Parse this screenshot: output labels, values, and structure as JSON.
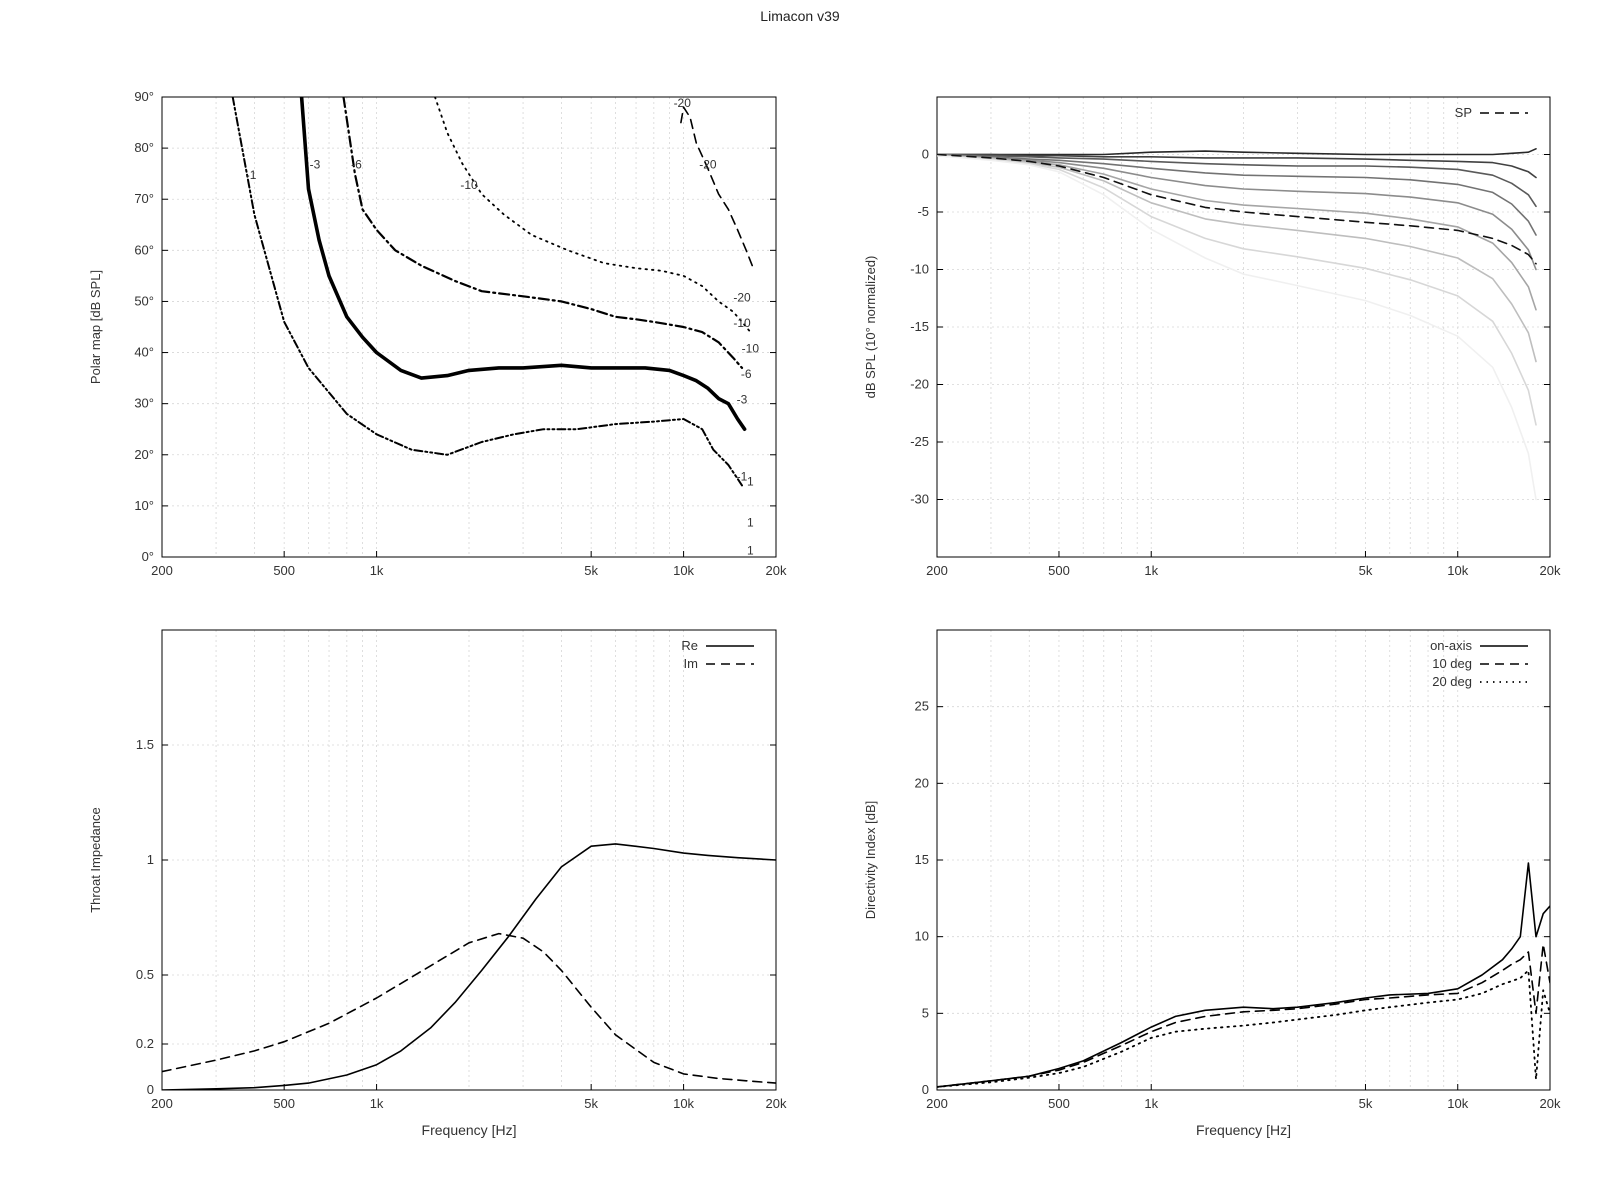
{
  "title": "Limacon v39",
  "chart_data": [
    {
      "id": "polar_map",
      "type": "line",
      "subtype": "contour",
      "title": "",
      "xlabel": "",
      "ylabel": "Polar map [dB SPL]",
      "x_scale": "log",
      "xlim": [
        200,
        20000
      ],
      "ylim": [
        0,
        90
      ],
      "x_ticks": [
        200,
        500,
        1000,
        5000,
        10000,
        20000
      ],
      "x_tick_labels": [
        "200",
        "500",
        "1k",
        "5k",
        "10k",
        "20k"
      ],
      "y_ticks": [
        0,
        10,
        20,
        30,
        40,
        50,
        60,
        70,
        80,
        90
      ],
      "y_tick_labels": [
        "0°",
        "10°",
        "20°",
        "30°",
        "40°",
        "50°",
        "60°",
        "70°",
        "80°",
        "90°"
      ],
      "grid": true,
      "series": [
        {
          "name": "-1",
          "style": "dash-dot-dot",
          "x": [
            340,
            400,
            500,
            600,
            800,
            1000,
            1300,
            1700,
            2200,
            2800,
            3500,
            4500,
            6000,
            8000,
            10000,
            11500,
            12500,
            14000,
            15500
          ],
          "y": [
            90,
            67,
            46,
            37,
            28,
            24,
            21,
            20,
            22.5,
            24,
            25,
            25,
            26,
            26.5,
            27,
            25,
            21,
            18,
            14
          ]
        },
        {
          "name": "-3",
          "style": "thick-solid",
          "x": [
            570,
            600,
            650,
            700,
            800,
            900,
            1000,
            1200,
            1400,
            1700,
            2000,
            2500,
            3000,
            4000,
            5000,
            6000,
            7500,
            9000,
            10000,
            11000,
            12000,
            13000,
            14000,
            15000,
            15800
          ],
          "y": [
            90,
            72,
            62,
            55,
            47,
            43,
            40,
            36.5,
            35,
            35.5,
            36.5,
            37,
            37,
            37.5,
            37,
            37,
            37,
            36.5,
            35.5,
            34.5,
            33,
            31,
            30,
            27,
            25
          ]
        },
        {
          "name": "-6",
          "style": "dash-dot",
          "x": [
            780,
            850,
            900,
            1000,
            1150,
            1400,
            1800,
            2200,
            3000,
            4000,
            5000,
            6000,
            7000,
            8000,
            10000,
            11500,
            13000,
            14500,
            15500
          ],
          "y": [
            90,
            75,
            68,
            64,
            60,
            57,
            54,
            52,
            51,
            50,
            48.5,
            47,
            46.5,
            46,
            45,
            44,
            42,
            39,
            37
          ]
        },
        {
          "name": "-10",
          "style": "dotted",
          "x": [
            1550,
            1700,
            1900,
            2200,
            2600,
            3200,
            4200,
            5500,
            7000,
            8500,
            10000,
            11500,
            13000,
            14500,
            15500,
            16500
          ],
          "y": [
            90,
            83,
            77,
            71,
            67,
            63,
            60,
            57.5,
            56.5,
            56,
            55,
            53,
            50,
            48,
            46,
            44
          ]
        },
        {
          "name": "-20",
          "style": "dashed",
          "x": [
            9800,
            10000,
            10500,
            11000,
            12000,
            13000,
            14000,
            15000,
            16000,
            17000
          ],
          "y": [
            85,
            88,
            86,
            81,
            76,
            71,
            68,
            64,
            60,
            56
          ]
        }
      ],
      "annotations": [
        "-1",
        "-3",
        "-6",
        "-10",
        "-20",
        "-20",
        "-20",
        "-10",
        "-10",
        "-6",
        "-3",
        "-1",
        "1",
        "1",
        "1"
      ]
    },
    {
      "id": "normalized_spl",
      "type": "line",
      "title": "",
      "xlabel": "",
      "ylabel": "dB SPL (10° normalized)",
      "x_scale": "log",
      "xlim": [
        200,
        20000
      ],
      "ylim": [
        -35,
        5
      ],
      "x_ticks": [
        200,
        500,
        1000,
        5000,
        10000,
        20000
      ],
      "x_tick_labels": [
        "200",
        "500",
        "1k",
        "5k",
        "10k",
        "20k"
      ],
      "y_ticks": [
        0,
        -5,
        -10,
        -15,
        -20,
        -25,
        -30
      ],
      "y_tick_labels": [
        "0",
        "-5",
        "-10",
        "-15",
        "-20",
        "-25",
        "-30"
      ],
      "grid": true,
      "legend": {
        "position": "top-right",
        "entries": [
          "SP"
        ]
      },
      "x": [
        200,
        300,
        400,
        500,
        700,
        1000,
        1500,
        2000,
        3000,
        5000,
        7000,
        10000,
        13000,
        15000,
        17000,
        18000
      ],
      "angle_curves_note": "family of off-axis curves, 10° steps from 10° (top) to 90° (bottom), dark to light",
      "angle_curves": [
        {
          "angle": 10,
          "values": [
            0,
            0,
            0,
            0,
            0,
            0.2,
            0.3,
            0.2,
            0.1,
            0,
            0,
            0,
            0,
            0.1,
            0.2,
            0.5
          ]
        },
        {
          "angle": 20,
          "values": [
            0,
            0,
            -0.1,
            -0.1,
            -0.2,
            -0.2,
            -0.3,
            -0.3,
            -0.3,
            -0.4,
            -0.5,
            -0.6,
            -0.7,
            -1.0,
            -1.5,
            -2.0
          ]
        },
        {
          "angle": 30,
          "values": [
            0,
            -0.1,
            -0.2,
            -0.3,
            -0.4,
            -0.6,
            -0.8,
            -0.9,
            -1.0,
            -1.0,
            -1.1,
            -1.3,
            -1.8,
            -2.5,
            -3.5,
            -4.5
          ]
        },
        {
          "angle": 40,
          "values": [
            0,
            -0.2,
            -0.4,
            -0.5,
            -0.8,
            -1.2,
            -1.6,
            -1.8,
            -1.9,
            -2.0,
            -2.2,
            -2.6,
            -3.3,
            -4.3,
            -5.8,
            -7.0
          ]
        },
        {
          "angle": 50,
          "values": [
            0,
            -0.3,
            -0.5,
            -0.7,
            -1.2,
            -2.0,
            -2.7,
            -3.0,
            -3.2,
            -3.4,
            -3.7,
            -4.2,
            -5.2,
            -6.5,
            -8.3,
            -10.0
          ]
        },
        {
          "angle": 60,
          "values": [
            -0.1,
            -0.3,
            -0.6,
            -0.9,
            -1.7,
            -3.0,
            -4.0,
            -4.4,
            -4.7,
            -5.1,
            -5.6,
            -6.3,
            -7.7,
            -9.4,
            -11.5,
            -13.5
          ]
        },
        {
          "angle": 70,
          "values": [
            -0.1,
            -0.4,
            -0.7,
            -1.1,
            -2.3,
            -4.2,
            -5.6,
            -6.1,
            -6.6,
            -7.3,
            -8.0,
            -9.0,
            -10.8,
            -13.0,
            -15.5,
            -18.0
          ]
        },
        {
          "angle": 80,
          "values": [
            -0.1,
            -0.4,
            -0.8,
            -1.3,
            -2.9,
            -5.4,
            -7.3,
            -8.2,
            -8.9,
            -9.9,
            -10.9,
            -12.3,
            -14.5,
            -17.3,
            -20.5,
            -23.5
          ]
        },
        {
          "angle": 90,
          "values": [
            -0.1,
            -0.5,
            -0.9,
            -1.5,
            -3.5,
            -6.5,
            -9.0,
            -10.4,
            -11.4,
            -12.7,
            -14.0,
            -15.8,
            -18.5,
            -22.0,
            -26.0,
            -30.0
          ]
        }
      ],
      "sp_values": [
        0,
        -0.3,
        -0.6,
        -1.0,
        -2.0,
        -3.5,
        -4.6,
        -5.0,
        -5.4,
        -5.9,
        -6.2,
        -6.6,
        -7.3,
        -7.9,
        -8.7,
        -9.5
      ]
    },
    {
      "id": "throat_impedance",
      "type": "line",
      "title": "",
      "xlabel": "Frequency [Hz]",
      "ylabel": "Throat Impedance",
      "x_scale": "log",
      "xlim": [
        200,
        20000
      ],
      "ylim": [
        0,
        2
      ],
      "x_ticks": [
        200,
        500,
        1000,
        5000,
        10000,
        20000
      ],
      "x_tick_labels": [
        "200",
        "500",
        "1k",
        "5k",
        "10k",
        "20k"
      ],
      "y_ticks": [
        0,
        0.2,
        0.5,
        1,
        1.5
      ],
      "y_tick_labels": [
        "0",
        "0.2",
        "0.5",
        "1",
        "1.5"
      ],
      "grid": true,
      "legend": {
        "position": "top-right",
        "entries": [
          "Re",
          "Im"
        ]
      },
      "series": [
        {
          "name": "Re",
          "style": "solid",
          "x": [
            200,
            300,
            400,
            500,
            600,
            800,
            1000,
            1200,
            1500,
            1800,
            2200,
            2700,
            3300,
            4000,
            5000,
            6000,
            8000,
            10000,
            12000,
            15000,
            20000
          ],
          "y": [
            0.0,
            0.005,
            0.01,
            0.02,
            0.03,
            0.065,
            0.11,
            0.17,
            0.27,
            0.38,
            0.52,
            0.67,
            0.83,
            0.97,
            1.06,
            1.07,
            1.05,
            1.03,
            1.02,
            1.01,
            1.0
          ]
        },
        {
          "name": "Im",
          "style": "dashed",
          "x": [
            200,
            300,
            400,
            500,
            700,
            1000,
            1500,
            2000,
            2500,
            3000,
            3500,
            4000,
            5000,
            6000,
            8000,
            10000,
            13000,
            16000,
            20000
          ],
          "y": [
            0.08,
            0.13,
            0.17,
            0.21,
            0.29,
            0.4,
            0.54,
            0.64,
            0.68,
            0.66,
            0.6,
            0.52,
            0.36,
            0.24,
            0.12,
            0.07,
            0.05,
            0.04,
            0.03
          ]
        }
      ]
    },
    {
      "id": "directivity_index",
      "type": "line",
      "title": "",
      "xlabel": "Frequency [Hz]",
      "ylabel": "Directivity Index [dB]",
      "x_scale": "log",
      "xlim": [
        200,
        20000
      ],
      "ylim": [
        0,
        30
      ],
      "x_ticks": [
        200,
        500,
        1000,
        5000,
        10000,
        20000
      ],
      "x_tick_labels": [
        "200",
        "500",
        "1k",
        "5k",
        "10k",
        "20k"
      ],
      "y_ticks": [
        0,
        5,
        10,
        15,
        20,
        25
      ],
      "y_tick_labels": [
        "0",
        "5",
        "10",
        "15",
        "20",
        "25"
      ],
      "grid": true,
      "legend": {
        "position": "top-right",
        "entries": [
          "on-axis",
          "10 deg",
          "20 deg"
        ]
      },
      "series": [
        {
          "name": "on-axis",
          "style": "solid",
          "x": [
            200,
            300,
            400,
            500,
            600,
            800,
            1000,
            1200,
            1500,
            2000,
            2500,
            3000,
            4000,
            5000,
            6000,
            8000,
            10000,
            12000,
            14000,
            15000,
            16000,
            17000,
            18000,
            19000,
            20000
          ],
          "y": [
            0.2,
            0.6,
            0.9,
            1.4,
            1.9,
            3.1,
            4.1,
            4.8,
            5.2,
            5.4,
            5.3,
            5.4,
            5.7,
            6.0,
            6.2,
            6.3,
            6.6,
            7.5,
            8.5,
            9.2,
            10,
            14.8,
            10,
            11.5,
            12
          ]
        },
        {
          "name": "10 deg",
          "style": "dashed",
          "x": [
            200,
            300,
            400,
            500,
            600,
            800,
            1000,
            1200,
            1500,
            2000,
            2500,
            3000,
            4000,
            5000,
            6000,
            8000,
            10000,
            12000,
            14000,
            15000,
            16000,
            17000,
            18000,
            19000,
            20000
          ],
          "y": [
            0.2,
            0.6,
            0.9,
            1.3,
            1.8,
            2.9,
            3.8,
            4.4,
            4.8,
            5.1,
            5.2,
            5.3,
            5.6,
            5.9,
            6.0,
            6.2,
            6.3,
            7.0,
            7.8,
            8.2,
            8.5,
            9,
            5,
            9.5,
            7
          ]
        },
        {
          "name": "20 deg",
          "style": "dotted",
          "x": [
            200,
            300,
            400,
            500,
            600,
            800,
            1000,
            1200,
            1500,
            2000,
            2500,
            3000,
            4000,
            5000,
            6000,
            8000,
            10000,
            12000,
            14000,
            15000,
            16000,
            17000,
            18000,
            19000,
            20000
          ],
          "y": [
            0.2,
            0.5,
            0.8,
            1.1,
            1.5,
            2.5,
            3.4,
            3.8,
            4.0,
            4.2,
            4.4,
            4.6,
            4.9,
            5.2,
            5.4,
            5.7,
            5.9,
            6.3,
            6.9,
            7.1,
            7.3,
            7.8,
            0.7,
            6.5,
            5
          ]
        }
      ]
    }
  ]
}
